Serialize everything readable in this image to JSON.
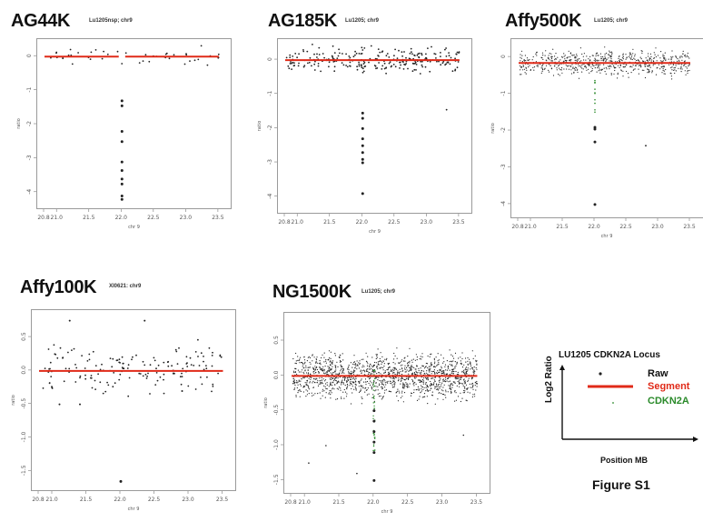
{
  "chart_data": [
    {
      "id": "ag44k",
      "type": "scatter",
      "title": "AG44K",
      "subtitle": "Lu1205nsp; chr9",
      "xlabel": "chr 9",
      "ylabel": "ratio",
      "xlim": [
        20.8,
        23.6
      ],
      "ylim": [
        -4.3,
        0.3
      ],
      "xticks": [
        "20.8",
        "21.0",
        "21.5",
        "22.0",
        "22.5",
        "23.0",
        "23.5"
      ],
      "yticks": [
        "0",
        "-1",
        "-2",
        "-3",
        "-4"
      ],
      "segments": [
        {
          "x": [
            20.8,
            21.95
          ],
          "y": 0
        },
        {
          "x": [
            22.05,
            23.5
          ],
          "y": 0
        }
      ],
      "deletion_points": {
        "x": 22.0,
        "y": [
          -1.3,
          -1.45,
          -2.2,
          -2.5,
          -3.1,
          -3.35,
          -3.6,
          -3.75,
          -4.1,
          -4.2
        ]
      },
      "raw_points_near_zero": "sparse raw points scattered around 0 (approx. -0.3 to 0.3)"
    },
    {
      "id": "ag185k",
      "type": "scatter",
      "title": "AG185K",
      "subtitle": "Lu1205; chr9",
      "xlabel": "chr 9",
      "ylabel": "ratio",
      "xlim": [
        20.8,
        23.6
      ],
      "ylim": [
        -4.3,
        0.4
      ],
      "xticks": [
        "20.8",
        "21.0",
        "21.5",
        "22.0",
        "22.5",
        "23.0",
        "23.5"
      ],
      "yticks": [
        "0",
        "-1",
        "-2",
        "-3",
        "-4"
      ],
      "segments": [
        {
          "x": [
            20.8,
            23.5
          ],
          "y": 0
        }
      ],
      "deletion_points": {
        "x": 22.0,
        "y": [
          -1.55,
          -1.7,
          -2.0,
          -2.3,
          -2.5,
          -2.7,
          -2.9,
          -3.0,
          -3.9
        ]
      },
      "raw_points_near_zero": "dense raw points around 0 (approx. -0.4 to 0.4)"
    },
    {
      "id": "affy500k",
      "type": "scatter",
      "title": "Affy500K",
      "subtitle": "Lu1205; chr9",
      "xlabel": "chr 9",
      "ylabel": "ratio",
      "xlim": [
        20.8,
        23.6
      ],
      "ylim": [
        -4.2,
        0.3
      ],
      "xticks": [
        "20.8",
        "21.0",
        "21.5",
        "22.0",
        "22.5",
        "23.0",
        "23.5"
      ],
      "yticks": [
        "0",
        "-1",
        "-2",
        "-3",
        "-4"
      ],
      "segments": [
        {
          "x": [
            20.8,
            23.5
          ],
          "y": -0.15
        }
      ],
      "deletion_points": {
        "x": 22.0,
        "y": [
          -1.9,
          -1.95,
          -2.3,
          -4.0
        ]
      },
      "raw_points_near_zero": "very dense raw points around -0.1 (approx. -0.8 to 0.3)"
    },
    {
      "id": "affy100k",
      "type": "scatter",
      "title": "Affy100K",
      "subtitle": "XI0621: chr9",
      "xlabel": "chr 9",
      "ylabel": "ratio",
      "xlim": [
        20.8,
        23.6
      ],
      "ylim": [
        -1.7,
        0.8
      ],
      "xticks": [
        "20.8",
        "21.0",
        "21.5",
        "22.0",
        "22.5",
        "23.0",
        "23.5"
      ],
      "yticks": [
        "0.5",
        "0.0",
        "-0.5",
        "-1.0",
        "-1.5"
      ],
      "segments": [
        {
          "x": [
            20.8,
            23.5
          ],
          "y": 0
        }
      ],
      "deletion_points": {
        "x": 22.0,
        "y": [
          -1.65
        ]
      },
      "raw_points_near_zero": "sparse raw points around 0 (approx. -0.5 to 0.6)"
    },
    {
      "id": "ng1500k",
      "type": "scatter",
      "title": "NG1500K",
      "subtitle": "Lu1205; chr9",
      "xlabel": "chr 9",
      "ylabel": "ratio",
      "xlim": [
        20.8,
        23.6
      ],
      "ylim": [
        -1.6,
        0.8
      ],
      "xticks": [
        "20.8",
        "21.0",
        "21.5",
        "22.0",
        "22.5",
        "23.0",
        "23.5"
      ],
      "yticks": [
        "0.5",
        "0.0",
        "-0.5",
        "-1.0",
        "-1.5"
      ],
      "segments": [
        {
          "x": [
            20.8,
            23.5
          ],
          "y": 0
        }
      ],
      "deletion_points": {
        "x": 22.0,
        "y": [
          -0.5,
          -0.65,
          -0.8,
          -0.95,
          -1.1,
          -1.5
        ]
      },
      "raw_points_near_zero": "very dense raw points around 0 (approx. -0.5 to 0.5), with a green CDKN2A band near x=22.0"
    }
  ],
  "colors": {
    "raw": "#222222",
    "segment": "#e02a18",
    "cdkn2a": "#2a8a2a"
  },
  "legend": {
    "title": "LU1205 CDKN2A Locus",
    "y_axis_label": "Log2 Ratio",
    "x_axis_label": "Position MB",
    "items": [
      {
        "label": "Raw",
        "color": "#222222"
      },
      {
        "label": "Segment",
        "color": "#e02a18"
      },
      {
        "label": "CDKN2A",
        "color": "#2a8a2a"
      }
    ]
  },
  "figure_label": "Figure S1"
}
